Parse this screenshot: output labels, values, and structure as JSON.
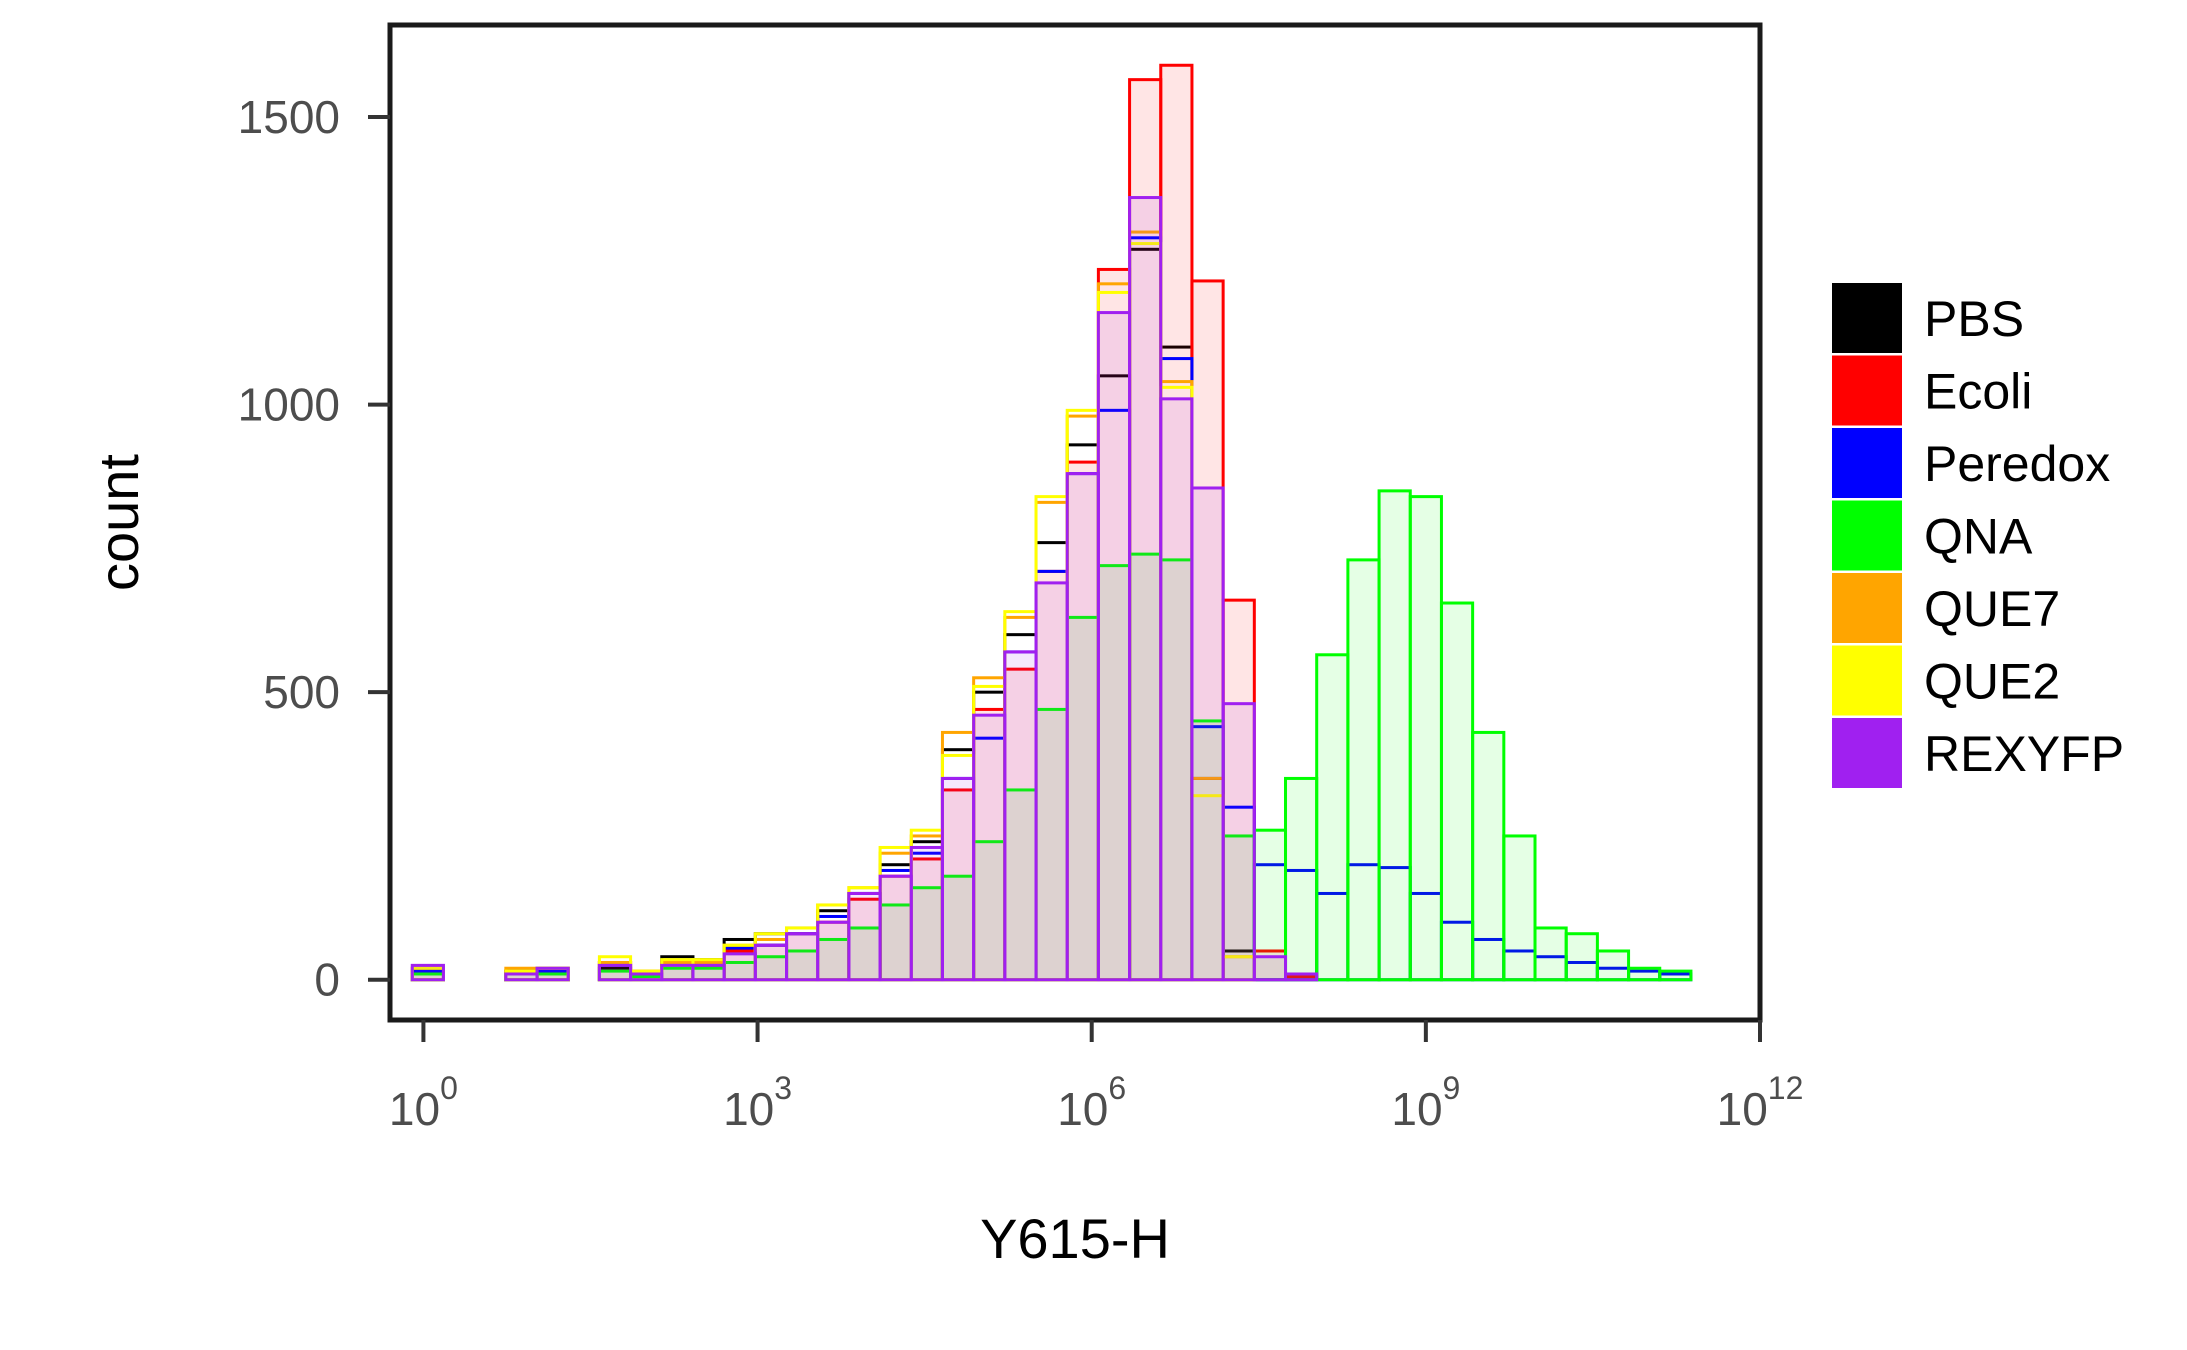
{
  "chart_data": {
    "type": "histogram",
    "x_scale": "log10",
    "xlabel": "Y615-H",
    "ylabel": "count",
    "xlim_log10": [
      -0.3,
      12
    ],
    "ylim": [
      -70,
      1660
    ],
    "x_ticks": [
      {
        "base": "10",
        "exp": "0",
        "value_log10": 0
      },
      {
        "base": "10",
        "exp": "3",
        "value_log10": 3
      },
      {
        "base": "10",
        "exp": "6",
        "value_log10": 6
      },
      {
        "base": "10",
        "exp": "9",
        "value_log10": 9
      },
      {
        "base": "10",
        "exp": "12",
        "value_log10": 12
      }
    ],
    "y_ticks": [
      {
        "label": "0",
        "value": 0
      },
      {
        "label": "500",
        "value": 500
      },
      {
        "label": "1000",
        "value": 1000
      },
      {
        "label": "1500",
        "value": 1500
      }
    ],
    "bin_edges_log10": [
      -0.1,
      0.18,
      0.46,
      0.74,
      1.02,
      1.3,
      1.58,
      1.86,
      2.14,
      2.42,
      2.7,
      2.98,
      3.26,
      3.54,
      3.82,
      4.1,
      4.38,
      4.66,
      4.94,
      5.22,
      5.5,
      5.78,
      6.06,
      6.34,
      6.62,
      6.9,
      7.18,
      7.46,
      7.74,
      8.02,
      8.3,
      8.58,
      8.86,
      9.14,
      9.42,
      9.7,
      9.98,
      10.26,
      10.54,
      10.82,
      11.1,
      11.38
    ],
    "legend": {
      "position": "right"
    },
    "grid": false,
    "series": [
      {
        "name": "PBS",
        "color": "#000000",
        "fill": false,
        "values": [
          15,
          0,
          0,
          15,
          20,
          0,
          20,
          10,
          40,
          35,
          70,
          80,
          90,
          120,
          150,
          200,
          240,
          400,
          500,
          600,
          760,
          930,
          1050,
          1270,
          1100,
          350,
          50,
          0,
          0,
          0,
          0,
          0,
          0,
          0,
          0,
          0,
          0,
          0,
          0,
          0,
          0
        ]
      },
      {
        "name": "Ecoli",
        "color": "#ff0000",
        "fill": true,
        "values": [
          20,
          0,
          0,
          15,
          15,
          0,
          30,
          15,
          30,
          25,
          50,
          60,
          80,
          100,
          140,
          180,
          210,
          330,
          470,
          540,
          710,
          900,
          1235,
          1565,
          1590,
          1215,
          660,
          50,
          5,
          0,
          0,
          0,
          0,
          0,
          0,
          0,
          0,
          0,
          0,
          0,
          0
        ]
      },
      {
        "name": "Peredox",
        "color": "#0000ff",
        "fill": false,
        "values": [
          15,
          0,
          0,
          15,
          15,
          0,
          25,
          10,
          30,
          30,
          55,
          60,
          80,
          110,
          150,
          190,
          220,
          350,
          420,
          570,
          710,
          880,
          990,
          1290,
          1080,
          440,
          300,
          200,
          190,
          150,
          200,
          195,
          150,
          100,
          70,
          50,
          40,
          30,
          20,
          15,
          10
        ]
      },
      {
        "name": "QNA",
        "color": "#00ff00",
        "fill": true,
        "values": [
          10,
          0,
          0,
          10,
          10,
          0,
          15,
          5,
          20,
          20,
          30,
          40,
          50,
          70,
          90,
          130,
          160,
          180,
          240,
          330,
          470,
          630,
          720,
          740,
          730,
          450,
          250,
          260,
          350,
          565,
          730,
          850,
          840,
          655,
          430,
          250,
          90,
          80,
          50,
          20,
          15
        ]
      },
      {
        "name": "QUE7",
        "color": "#ffa500",
        "fill": false,
        "values": [
          20,
          0,
          0,
          20,
          20,
          0,
          30,
          15,
          30,
          30,
          60,
          70,
          90,
          130,
          160,
          220,
          250,
          430,
          525,
          630,
          830,
          980,
          1210,
          1300,
          1040,
          350,
          40,
          0,
          0,
          0,
          0,
          0,
          0,
          0,
          0,
          0,
          0,
          0,
          0,
          0,
          0
        ]
      },
      {
        "name": "QUE2",
        "color": "#ffff00",
        "fill": false,
        "values": [
          20,
          0,
          0,
          15,
          20,
          0,
          40,
          15,
          35,
          35,
          60,
          80,
          90,
          130,
          160,
          230,
          260,
          390,
          510,
          640,
          840,
          990,
          1195,
          1280,
          1030,
          320,
          40,
          0,
          0,
          0,
          0,
          0,
          0,
          0,
          0,
          0,
          0,
          0,
          0,
          0,
          0
        ]
      },
      {
        "name": "REXYFP",
        "color": "#a020f0",
        "fill": true,
        "values": [
          25,
          0,
          0,
          10,
          20,
          0,
          25,
          10,
          25,
          25,
          45,
          60,
          80,
          100,
          150,
          180,
          230,
          350,
          460,
          570,
          690,
          880,
          1160,
          1360,
          1010,
          855,
          480,
          40,
          10,
          0,
          0,
          0,
          0,
          0,
          0,
          0,
          0,
          0,
          0,
          0,
          0
        ]
      }
    ]
  }
}
